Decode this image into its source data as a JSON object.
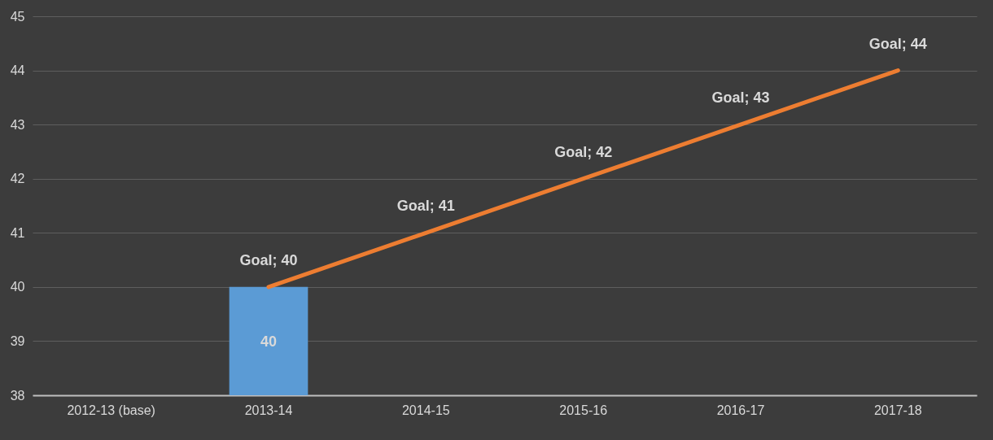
{
  "chart_data": {
    "type": "bar",
    "categories": [
      "2012-13 (base)",
      "2013-14",
      "2014-15",
      "2015-16",
      "2016-17",
      "2017-18"
    ],
    "series": [
      {
        "color": "#5b9bd5",
        "values": [
          null,
          40,
          null,
          null,
          null,
          null
        ],
        "value_labels": [
          null,
          "40",
          null,
          null,
          null,
          null
        ]
      },
      {
        "type": "line",
        "color": "#ed7d31",
        "values": [
          null,
          40,
          41,
          42,
          43,
          44
        ],
        "value_labels": [
          null,
          "Goal; 40",
          "Goal; 41",
          "Goal; 42",
          "Goal; 43",
          "Goal; 44"
        ]
      }
    ],
    "ylim": [
      38,
      45
    ],
    "yticks": [
      38,
      39,
      40,
      41,
      42,
      43,
      44,
      45
    ],
    "grid": "y"
  }
}
